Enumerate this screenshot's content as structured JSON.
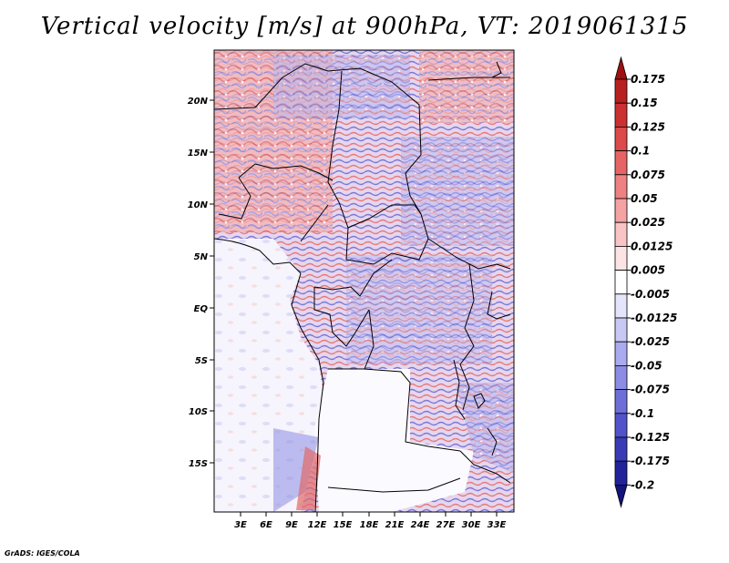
{
  "title": "Vertical velocity [m/s] at 900hPa, VT: 2019061315",
  "footer": "GrADS: IGES/COLA",
  "map": {
    "lat_ticks": [
      "20N",
      "15N",
      "10N",
      "5N",
      "EQ",
      "5S",
      "10S",
      "15S"
    ],
    "lon_ticks": [
      "3E",
      "6E",
      "9E",
      "12E",
      "15E",
      "18E",
      "21E",
      "24E",
      "27E",
      "30E",
      "33E"
    ]
  },
  "colorbar": {
    "levels": [
      "0.175",
      "0.15",
      "0.125",
      "0.1",
      "0.075",
      "0.05",
      "0.025",
      "0.0125",
      "0.005",
      "-0.005",
      "-0.0125",
      "-0.025",
      "-0.05",
      "-0.075",
      "-0.1",
      "-0.125",
      "-0.175",
      "-0.2"
    ],
    "colors": [
      "#a01010",
      "#b82020",
      "#cc3030",
      "#dc4a4a",
      "#e66464",
      "#ee8282",
      "#f5a2a2",
      "#fac4c4",
      "#fde4e4",
      "#ffffff",
      "#e4e4fa",
      "#c8c8f4",
      "#aaaaee",
      "#8c8ce4",
      "#6e6ed8",
      "#5252ca",
      "#3a3ab6",
      "#22229a",
      "#14147a"
    ]
  }
}
